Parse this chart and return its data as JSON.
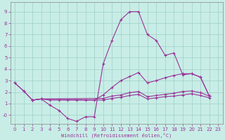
{
  "xlabel": "Windchill (Refroidissement éolien,°C)",
  "bg_color": "#c8ede6",
  "grid_color": "#9ecfc7",
  "line_color": "#993399",
  "xlim": [
    -0.5,
    23.5
  ],
  "ylim": [
    -0.8,
    9.8
  ],
  "xticks": [
    0,
    1,
    2,
    3,
    4,
    5,
    6,
    7,
    8,
    9,
    10,
    11,
    12,
    13,
    14,
    15,
    16,
    17,
    18,
    19,
    20,
    21,
    22,
    23
  ],
  "ytick_vals": [
    0,
    1,
    2,
    3,
    4,
    5,
    6,
    7,
    8,
    9
  ],
  "ytick_labels": [
    "-0",
    "1",
    "2",
    "3",
    "4",
    "5",
    "6",
    "7",
    "8",
    "9"
  ],
  "line1_x": [
    0,
    1,
    2,
    3,
    4,
    5,
    6,
    7,
    8,
    9,
    10,
    11,
    12,
    13,
    14,
    15,
    16,
    17,
    18,
    19,
    20,
    21,
    22
  ],
  "line1_y": [
    2.8,
    2.1,
    1.3,
    1.4,
    0.85,
    0.4,
    -0.3,
    -0.55,
    -0.15,
    -0.15,
    4.45,
    6.5,
    8.3,
    9.0,
    9.0,
    7.0,
    6.5,
    5.2,
    5.4,
    3.5,
    3.6,
    3.3,
    1.65
  ],
  "line2_x": [
    0,
    1,
    2,
    3,
    4,
    5,
    6,
    7,
    8,
    9,
    10,
    11,
    12,
    13,
    14,
    15,
    16,
    17,
    18,
    19,
    20,
    21,
    22
  ],
  "line2_y": [
    2.8,
    2.1,
    1.3,
    1.4,
    1.3,
    1.3,
    1.3,
    1.3,
    1.3,
    1.3,
    1.75,
    2.4,
    3.0,
    3.35,
    3.7,
    2.8,
    3.0,
    3.25,
    3.45,
    3.6,
    3.6,
    3.3,
    1.65
  ],
  "line3_x": [
    2,
    3,
    10,
    11,
    12,
    13,
    14,
    15,
    16,
    17,
    18,
    19,
    20,
    21,
    22
  ],
  "line3_y": [
    1.3,
    1.4,
    1.45,
    1.65,
    1.75,
    1.95,
    2.05,
    1.6,
    1.7,
    1.8,
    1.9,
    2.05,
    2.1,
    1.95,
    1.65
  ],
  "line4_x": [
    2,
    3,
    10,
    11,
    12,
    13,
    14,
    15,
    16,
    17,
    18,
    19,
    20,
    21,
    22
  ],
  "line4_y": [
    1.3,
    1.4,
    1.3,
    1.45,
    1.55,
    1.7,
    1.8,
    1.4,
    1.5,
    1.6,
    1.65,
    1.75,
    1.85,
    1.7,
    1.5
  ]
}
